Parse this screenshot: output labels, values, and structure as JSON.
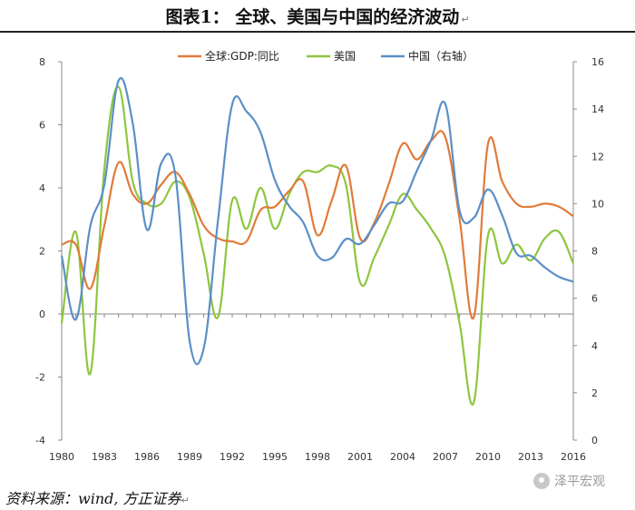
{
  "header": {
    "title": "图表1： 全球、美国与中国的经济波动",
    "paragraph_mark": "↵"
  },
  "footer": {
    "source": "资料来源：wind, 方正证券",
    "watermark": "泽平宏观"
  },
  "colors": {
    "global": "#E07B39",
    "us": "#8DC63F",
    "china": "#5B8FC7",
    "axis": "#888888",
    "text": "#222222"
  },
  "chart_data": {
    "type": "line",
    "x": [
      1980,
      1981,
      1982,
      1983,
      1984,
      1985,
      1986,
      1987,
      1988,
      1989,
      1990,
      1991,
      1992,
      1993,
      1994,
      1995,
      1996,
      1997,
      1998,
      1999,
      2000,
      2001,
      2002,
      2003,
      2004,
      2005,
      2006,
      2007,
      2008,
      2009,
      2010,
      2011,
      2012,
      2013,
      2014,
      2015,
      2016
    ],
    "x_ticks": [
      1980,
      1983,
      1986,
      1989,
      1992,
      1995,
      1998,
      2001,
      2004,
      2007,
      2010,
      2013,
      2016
    ],
    "y_left": {
      "range": [
        -4,
        8
      ],
      "ticks": [
        -4,
        -2,
        0,
        2,
        4,
        6,
        8
      ]
    },
    "y_right": {
      "range": [
        0,
        16
      ],
      "ticks": [
        0,
        2,
        4,
        6,
        8,
        10,
        12,
        14,
        16
      ]
    },
    "series": [
      {
        "name": "全球:GDP:同比",
        "axis": "left",
        "color": "#E07B39",
        "values": [
          2.2,
          2.2,
          0.8,
          2.8,
          4.8,
          3.8,
          3.5,
          4.1,
          4.5,
          3.8,
          2.8,
          2.4,
          2.3,
          2.3,
          3.3,
          3.4,
          3.9,
          4.2,
          2.5,
          3.6,
          4.7,
          2.4,
          2.9,
          4.1,
          5.4,
          4.9,
          5.5,
          5.6,
          3.0,
          -0.1,
          5.4,
          4.2,
          3.5,
          3.4,
          3.5,
          3.4,
          3.1
        ]
      },
      {
        "name": "美国",
        "axis": "left",
        "color": "#8DC63F",
        "values": [
          -0.3,
          2.6,
          -1.9,
          4.6,
          7.2,
          4.2,
          3.5,
          3.5,
          4.2,
          3.7,
          1.9,
          -0.1,
          3.6,
          2.7,
          4.0,
          2.7,
          3.8,
          4.5,
          4.5,
          4.7,
          4.1,
          1.0,
          1.8,
          2.8,
          3.8,
          3.3,
          2.7,
          1.8,
          -0.3,
          -2.8,
          2.5,
          1.6,
          2.2,
          1.7,
          2.4,
          2.6,
          1.6
        ]
      },
      {
        "name": "中国（右轴）",
        "axis": "right",
        "color": "#5B8FC7",
        "values": [
          7.8,
          5.1,
          9.0,
          10.8,
          15.2,
          13.4,
          8.9,
          11.7,
          11.2,
          4.2,
          3.9,
          9.3,
          14.2,
          13.9,
          13.0,
          11.0,
          9.9,
          9.2,
          7.8,
          7.7,
          8.5,
          8.3,
          9.1,
          10.0,
          10.1,
          11.4,
          12.7,
          14.2,
          9.7,
          9.4,
          10.6,
          9.5,
          7.9,
          7.8,
          7.3,
          6.9,
          6.7
        ]
      }
    ]
  }
}
